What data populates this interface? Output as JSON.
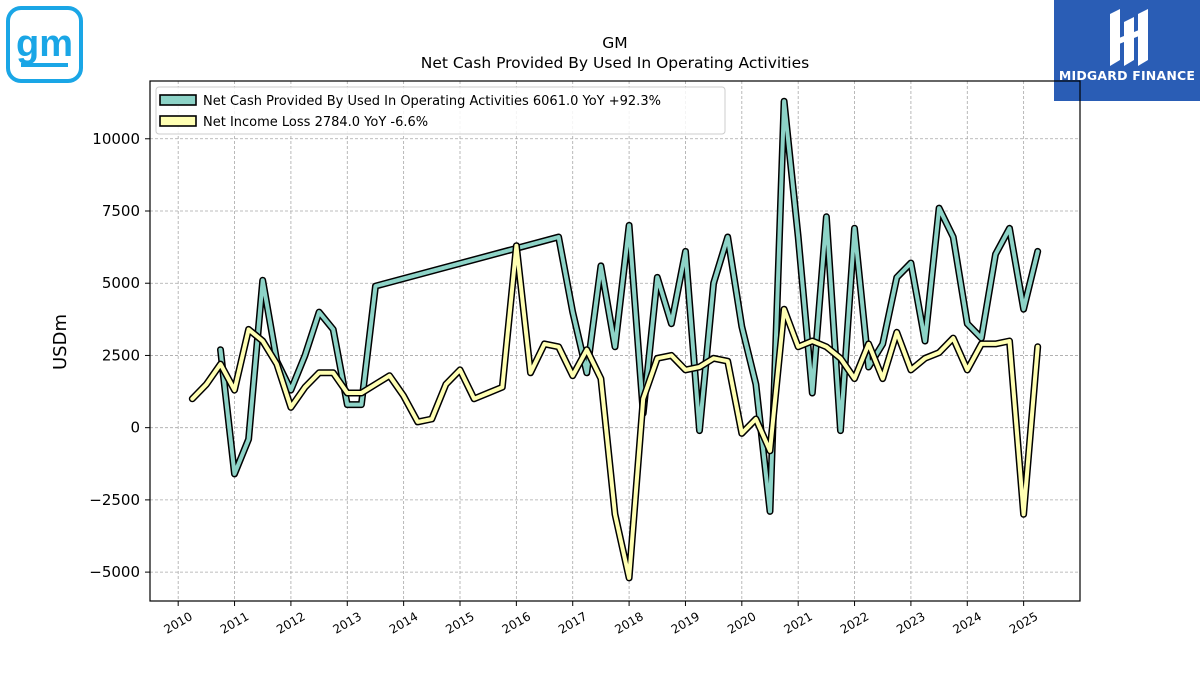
{
  "logos": {
    "left": {
      "icon": "gm-logo-icon",
      "text": "gm",
      "color": "#1aa6e6"
    },
    "right": {
      "icon": "midgard-logo-icon",
      "text": "MIDGARD FINANCE",
      "bg": "#2a5db5"
    }
  },
  "chart_data": {
    "type": "line",
    "title": "GM",
    "subtitle": "Net Cash Provided By Used In Operating Activities",
    "xlabel": "",
    "ylabel": "USDm",
    "xlim": [
      2009.5,
      2026.0
    ],
    "ylim": [
      -6000,
      12000
    ],
    "grid": true,
    "legend_position": "top-left",
    "x_ticks": [
      2010,
      2011,
      2012,
      2013,
      2014,
      2015,
      2016,
      2017,
      2018,
      2019,
      2020,
      2021,
      2022,
      2023,
      2024,
      2025
    ],
    "y_ticks": [
      -5000,
      -2500,
      0,
      2500,
      5000,
      7500,
      10000
    ],
    "y_tick_labels": [
      "−5000",
      "−2500",
      "0",
      "2500",
      "5000",
      "7500",
      "10000"
    ],
    "series": [
      {
        "name": "Net Cash Provided By Used In Operating Activities  6061.0 YoY +92.3%",
        "color": "#8dd3c7",
        "points": [
          [
            2010.75,
            2700
          ],
          [
            2011.0,
            -1600
          ],
          [
            2011.25,
            -400
          ],
          [
            2011.5,
            5100
          ],
          [
            2011.75,
            2300
          ],
          [
            2012.0,
            1300
          ],
          [
            2012.25,
            2500
          ],
          [
            2012.5,
            4000
          ],
          [
            2012.75,
            3400
          ],
          [
            2013.0,
            800
          ],
          [
            2013.25,
            800
          ],
          [
            2013.5,
            4900
          ],
          [
            2016.75,
            6600
          ],
          [
            2017.0,
            4000
          ],
          [
            2017.25,
            1900
          ],
          [
            2017.5,
            5600
          ],
          [
            2017.75,
            2800
          ],
          [
            2018.0,
            7000
          ],
          [
            2018.25,
            500
          ],
          [
            2018.5,
            5200
          ],
          [
            2018.75,
            3600
          ],
          [
            2019.0,
            6100
          ],
          [
            2019.25,
            -100
          ],
          [
            2019.5,
            5000
          ],
          [
            2019.75,
            6600
          ],
          [
            2020.0,
            3500
          ],
          [
            2020.25,
            1500
          ],
          [
            2020.5,
            -2900
          ],
          [
            2020.75,
            11300
          ],
          [
            2021.0,
            6600
          ],
          [
            2021.25,
            1200
          ],
          [
            2021.5,
            7300
          ],
          [
            2021.75,
            -100
          ],
          [
            2022.0,
            6900
          ],
          [
            2022.25,
            2100
          ],
          [
            2022.5,
            2900
          ],
          [
            2022.75,
            5200
          ],
          [
            2023.0,
            5700
          ],
          [
            2023.25,
            3000
          ],
          [
            2023.5,
            7600
          ],
          [
            2023.75,
            6600
          ],
          [
            2024.0,
            3600
          ],
          [
            2024.25,
            3100
          ],
          [
            2024.5,
            6000
          ],
          [
            2024.75,
            6900
          ],
          [
            2025.0,
            4100
          ],
          [
            2025.25,
            6100
          ]
        ]
      },
      {
        "name": "Net Income Loss  2784.0 YoY -6.6%",
        "color": "#ffffb3",
        "points": [
          [
            2010.25,
            1000
          ],
          [
            2010.5,
            1500
          ],
          [
            2010.75,
            2200
          ],
          [
            2011.0,
            1300
          ],
          [
            2011.25,
            3400
          ],
          [
            2011.5,
            3000
          ],
          [
            2011.75,
            2200
          ],
          [
            2012.0,
            700
          ],
          [
            2012.25,
            1400
          ],
          [
            2012.5,
            1900
          ],
          [
            2012.75,
            1900
          ],
          [
            2013.0,
            1200
          ],
          [
            2013.25,
            1200
          ],
          [
            2013.5,
            1500
          ],
          [
            2013.75,
            1800
          ],
          [
            2014.0,
            1100
          ],
          [
            2014.25,
            200
          ],
          [
            2014.5,
            300
          ],
          [
            2014.75,
            1500
          ],
          [
            2015.0,
            2000
          ],
          [
            2015.25,
            1000
          ],
          [
            2015.5,
            1200
          ],
          [
            2015.75,
            1400
          ],
          [
            2016.0,
            6300
          ],
          [
            2016.25,
            1900
          ],
          [
            2016.5,
            2900
          ],
          [
            2016.75,
            2800
          ],
          [
            2017.0,
            1800
          ],
          [
            2017.25,
            2700
          ],
          [
            2017.5,
            1700
          ],
          [
            2017.75,
            -3000
          ],
          [
            2018.0,
            -5200
          ],
          [
            2018.25,
            1000
          ],
          [
            2018.5,
            2400
          ],
          [
            2018.75,
            2500
          ],
          [
            2019.0,
            2000
          ],
          [
            2019.25,
            2100
          ],
          [
            2019.5,
            2400
          ],
          [
            2019.75,
            2300
          ],
          [
            2020.0,
            -200
          ],
          [
            2020.25,
            300
          ],
          [
            2020.5,
            -800
          ],
          [
            2020.75,
            4100
          ],
          [
            2021.0,
            2800
          ],
          [
            2021.25,
            3000
          ],
          [
            2021.5,
            2800
          ],
          [
            2021.75,
            2400
          ],
          [
            2022.0,
            1700
          ],
          [
            2022.25,
            2900
          ],
          [
            2022.5,
            1700
          ],
          [
            2022.75,
            3300
          ],
          [
            2023.0,
            2000
          ],
          [
            2023.25,
            2400
          ],
          [
            2023.5,
            2600
          ],
          [
            2023.75,
            3100
          ],
          [
            2024.0,
            2000
          ],
          [
            2024.25,
            2900
          ],
          [
            2024.5,
            2900
          ],
          [
            2024.75,
            3000
          ],
          [
            2025.0,
            -3000
          ],
          [
            2025.25,
            2800
          ]
        ]
      }
    ]
  }
}
